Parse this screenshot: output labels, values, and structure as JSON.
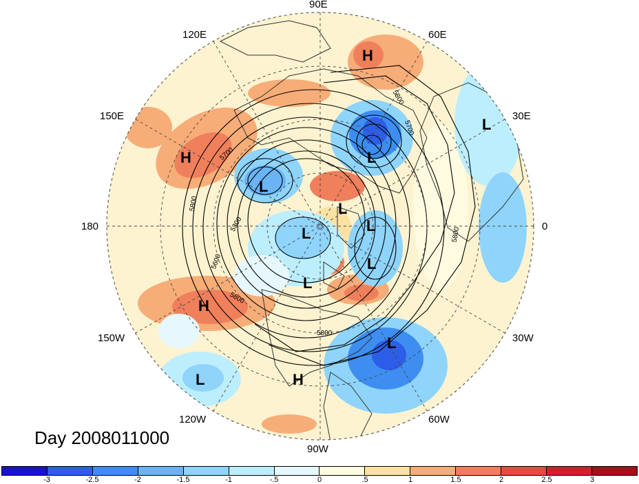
{
  "title": "Day 2008011000",
  "lon_labels": {
    "e90": "90E",
    "e60": "60E",
    "e30": "30E",
    "zero": "0",
    "w30": "30W",
    "w60": "60W",
    "w90": "90W",
    "w120": "120W",
    "w150": "150W",
    "d180": "180",
    "e150": "150E",
    "e120": "120E"
  },
  "contour_labels": [
    "5800",
    "5700",
    "5800",
    "5300",
    "5600",
    "5800",
    "5800",
    "5700",
    "5800"
  ],
  "pressure_centers": [
    "H",
    "H",
    "H",
    "H",
    "L",
    "L",
    "L",
    "L",
    "L",
    "L",
    "L",
    "L",
    "L",
    "L"
  ],
  "colorbar": {
    "ticks": [
      "-3",
      "-2.5",
      "-2",
      "-1.5",
      "-1",
      "-.5",
      "0",
      ".5",
      "1",
      "1.5",
      "2",
      "2.5",
      "3"
    ],
    "colors": [
      "#1a10d0",
      "#2c5ee8",
      "#3d8ef0",
      "#6ab4f6",
      "#8fd4fb",
      "#bdeefe",
      "#e6f8fe",
      "#fffbe0",
      "#fce2a2",
      "#f7ad78",
      "#f07f5c",
      "#e64b40",
      "#d21f2d",
      "#a50f1a"
    ]
  }
}
